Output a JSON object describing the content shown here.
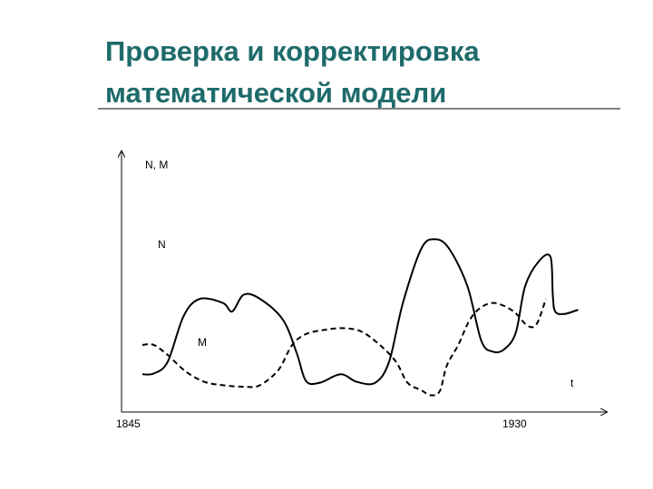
{
  "slide": {
    "title_line1": "Проверка и корректировка",
    "title_line2": "математической модели"
  },
  "chart_data": {
    "type": "line",
    "title": "",
    "ylabel": "N, M",
    "xlabel": "t",
    "x_tick_labels": [
      "1845",
      "1930"
    ],
    "grid": false,
    "series": [
      {
        "name": "N",
        "style": "solid",
        "color": "#000000",
        "points": [
          [
            1844.5,
            1.5
          ],
          [
            1847.0,
            1.6
          ],
          [
            1850.0,
            3.0
          ],
          [
            1853.5,
            8.5
          ],
          [
            1857.0,
            10.5
          ],
          [
            1862.0,
            10.0
          ],
          [
            1864.0,
            9.0
          ],
          [
            1866.5,
            11.0
          ],
          [
            1870.0,
            10.5
          ],
          [
            1875.0,
            8.0
          ],
          [
            1878.0,
            4.0
          ],
          [
            1880.0,
            0.7
          ],
          [
            1883.0,
            0.5
          ],
          [
            1887.5,
            1.5
          ],
          [
            1891.0,
            0.6
          ],
          [
            1895.0,
            0.5
          ],
          [
            1898.0,
            3.0
          ],
          [
            1901.0,
            10.0
          ],
          [
            1905.0,
            16.5
          ],
          [
            1908.0,
            17.6
          ],
          [
            1911.0,
            16.5
          ],
          [
            1915.0,
            12.0
          ],
          [
            1918.0,
            5.5
          ],
          [
            1920.5,
            4.2
          ],
          [
            1923.0,
            4.5
          ],
          [
            1925.5,
            6.5
          ],
          [
            1927.5,
            12.0
          ],
          [
            1930.5,
            15.0
          ],
          [
            1933.0,
            15.5
          ],
          [
            1933.5,
            11.0
          ],
          [
            1934.0,
            9.0
          ],
          [
            1936.0,
            8.7
          ],
          [
            1939.0,
            9.2
          ]
        ]
      },
      {
        "name": "M",
        "style": "dashed",
        "color": "#000000",
        "points": [
          [
            1844.5,
            5.0
          ],
          [
            1847.0,
            5.0
          ],
          [
            1850.0,
            3.8
          ],
          [
            1854.0,
            1.8
          ],
          [
            1858.0,
            0.6
          ],
          [
            1862.0,
            0.2
          ],
          [
            1867.0,
            0.0
          ],
          [
            1870.0,
            0.2
          ],
          [
            1874.0,
            2.0
          ],
          [
            1877.0,
            5.0
          ],
          [
            1880.0,
            6.3
          ],
          [
            1884.0,
            6.8
          ],
          [
            1888.0,
            7.0
          ],
          [
            1892.0,
            6.6
          ],
          [
            1896.0,
            5.0
          ],
          [
            1899.5,
            3.0
          ],
          [
            1902.0,
            0.5
          ],
          [
            1905.0,
            -0.4
          ],
          [
            1907.0,
            -1.0
          ],
          [
            1909.0,
            -0.5
          ],
          [
            1910.5,
            2.5
          ],
          [
            1913.0,
            5.0
          ],
          [
            1915.5,
            8.0
          ],
          [
            1918.0,
            9.5
          ],
          [
            1921.0,
            10.0
          ],
          [
            1925.0,
            9.0
          ],
          [
            1928.0,
            7.3
          ],
          [
            1930.0,
            7.5
          ],
          [
            1932.0,
            10.5
          ]
        ]
      }
    ],
    "xlim": [
      1840,
      1945
    ],
    "ylim": [
      -3,
      28
    ]
  }
}
